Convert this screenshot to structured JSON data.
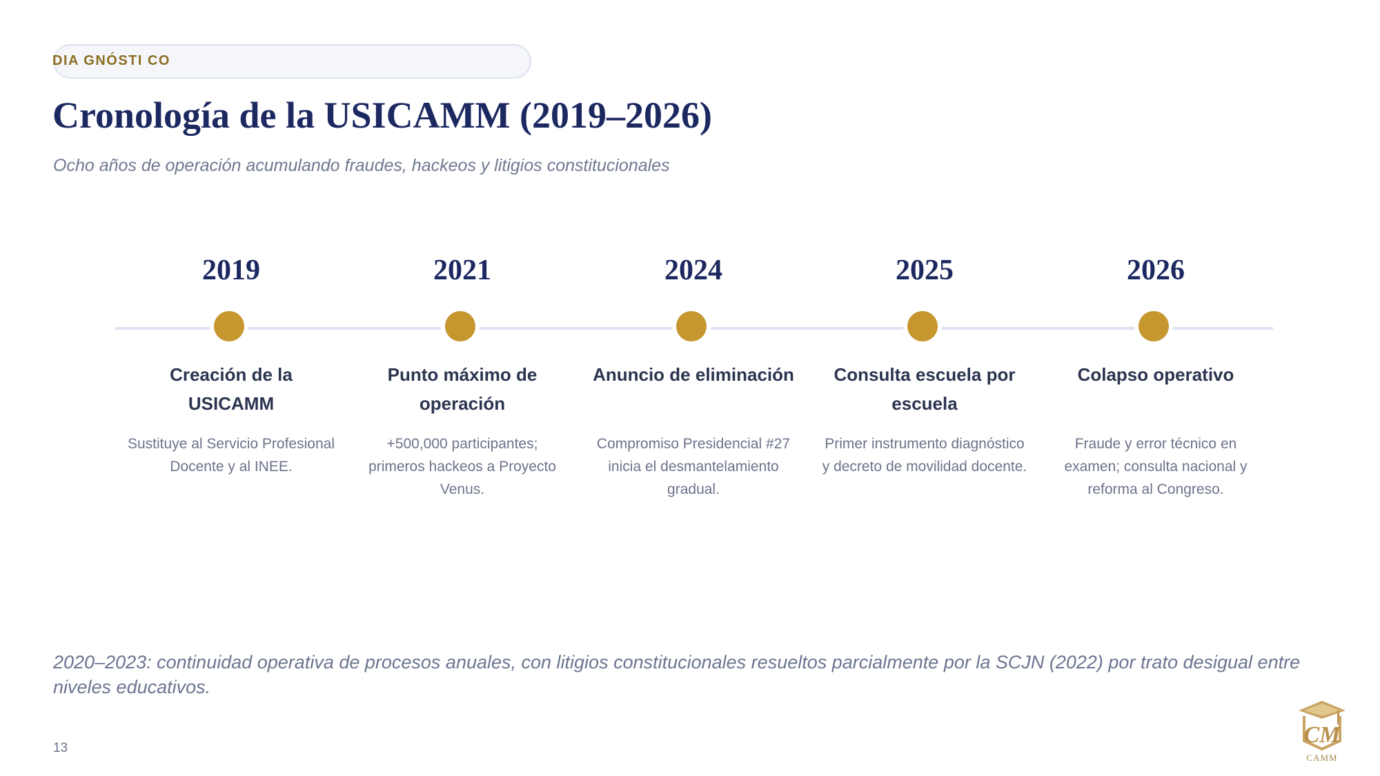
{
  "section_tag": "DIA GNÓSTI CO",
  "title": "Cronología de la USICAMM (2019–2026)",
  "subtitle": "Ocho años de operación acumulando fraudes, hackeos y litigios constitucionales",
  "timeline": [
    {
      "year": "2019",
      "title": "Creación de la USICAMM",
      "description": "Sustituye al Servicio Profesional Docente y al INEE."
    },
    {
      "year": "2021",
      "title": "Punto máximo de operación",
      "description": "+500,000 participantes; primeros hackeos a Proyecto Venus."
    },
    {
      "year": "2024",
      "title": "Anuncio de eliminación",
      "description": "Compromiso Presidencial #27 inicia el desmantelamiento gradual."
    },
    {
      "year": "2025",
      "title": "Consulta escuela por escuela",
      "description": "Primer instrumento diagnóstico y decreto de movilidad docente."
    },
    {
      "year": "2026",
      "title": "Colapso operativo",
      "description": "Fraude y error técnico en examen; consulta nacional y reforma al Congreso."
    }
  ],
  "footnote": "2020–2023: continuidad operativa de procesos anuales, con litigios constitucionales resueltos parcialmente por la SCJN (2022) por trato desigual entre niveles educativos.",
  "page_number": "13",
  "logo": {
    "monogram": "CM",
    "label": "CAMM"
  },
  "colors": {
    "navy": "#1c2860",
    "gold": "#c6962f",
    "tag_gold": "#8d6e22",
    "line": "#dfe3f1"
  }
}
